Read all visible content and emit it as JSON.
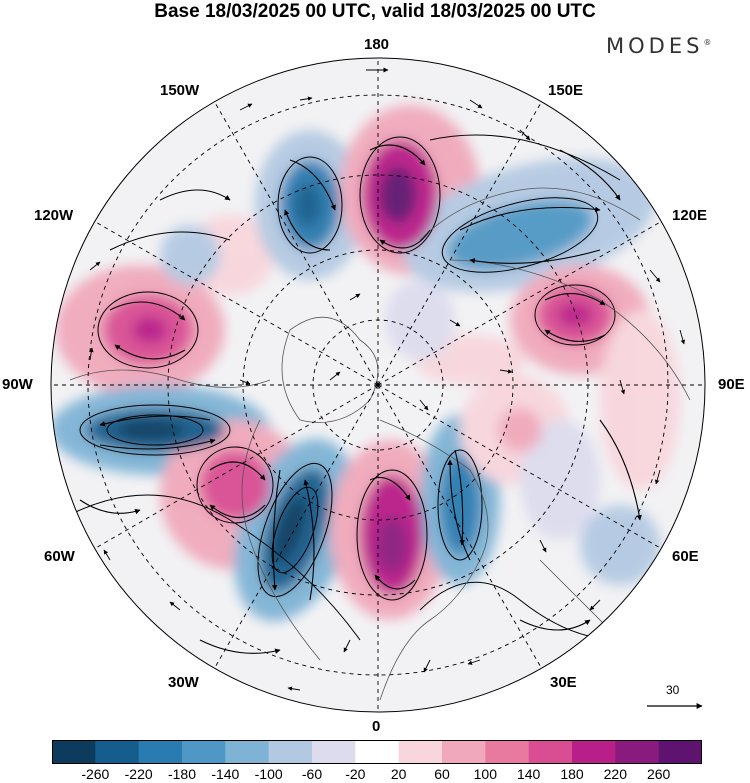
{
  "title": "Base 18/03/2025 00 UTC, valid 18/03/2025 00 UTC",
  "brand": "MODES",
  "brand_mark": "®",
  "longitude_labels": {
    "lon_180": "180",
    "lon_150w": "150W",
    "lon_150e": "150E",
    "lon_120w": "120W",
    "lon_120e": "120E",
    "lon_90w": "90W",
    "lon_90e": "90E",
    "lon_60w": "60W",
    "lon_60e": "60E",
    "lon_30w": "30W",
    "lon_30e": "30E",
    "lon_0": "0"
  },
  "reference_vector": {
    "label": "30"
  },
  "colorbar": {
    "colors": [
      "#0d3b5e",
      "#145d8c",
      "#2a7bb0",
      "#4f97c4",
      "#7fb3d5",
      "#b3c9e2",
      "#dcdcee",
      "#ffffff",
      "#f8d6dc",
      "#f0a9bb",
      "#e87aa0",
      "#d94d93",
      "#b91f88",
      "#8b1a7f",
      "#5e1370"
    ],
    "ticks": [
      "-260",
      "-220",
      "-180",
      "-140",
      "-100",
      "-60",
      "-20",
      "20",
      "60",
      "100",
      "140",
      "180",
      "220",
      "260"
    ]
  }
}
